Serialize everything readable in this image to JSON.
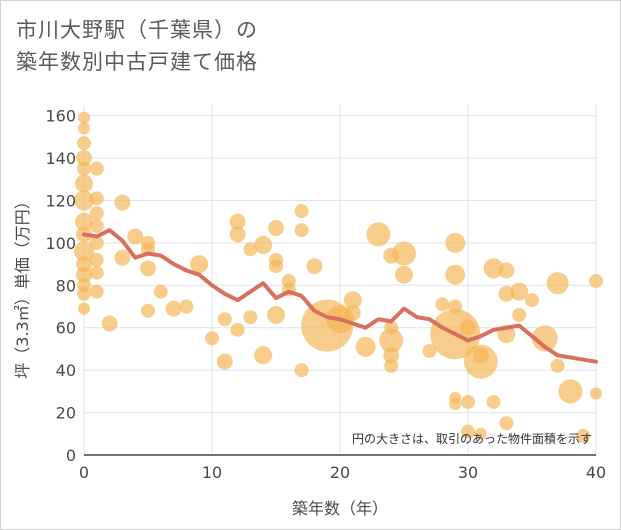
{
  "title_line1": "市川大野駅（千葉県）の",
  "title_line2": "築年数別中古戸建て価格",
  "chart_data": {
    "type": "scatter",
    "title": "市川大野駅（千葉県）の築年数別中古戸建て価格",
    "xlabel": "築年数（年）",
    "ylabel": "坪（3.3㎡）単価（万円）",
    "xlim": [
      0,
      40
    ],
    "ylim": [
      0,
      165
    ],
    "x_ticks": [
      0,
      10,
      20,
      30,
      40
    ],
    "y_ticks": [
      0,
      20,
      40,
      60,
      80,
      100,
      120,
      140,
      160
    ],
    "note": "円の大きさは、取引のあった物件面積を示す",
    "colors": {
      "bubble": "#f5b554",
      "line": "#d9705c",
      "grid": "#dde3ec"
    },
    "points": [
      {
        "x": 0,
        "y": 159,
        "s": 6
      },
      {
        "x": 0,
        "y": 154,
        "s": 6
      },
      {
        "x": 0,
        "y": 147,
        "s": 7
      },
      {
        "x": 0,
        "y": 140,
        "s": 8
      },
      {
        "x": 0,
        "y": 135,
        "s": 7
      },
      {
        "x": 0,
        "y": 128,
        "s": 9
      },
      {
        "x": 0,
        "y": 120,
        "s": 10
      },
      {
        "x": 0,
        "y": 110,
        "s": 9
      },
      {
        "x": 0,
        "y": 104,
        "s": 8
      },
      {
        "x": 0,
        "y": 96,
        "s": 10
      },
      {
        "x": 0,
        "y": 90,
        "s": 8
      },
      {
        "x": 0,
        "y": 85,
        "s": 8
      },
      {
        "x": 0,
        "y": 80,
        "s": 7
      },
      {
        "x": 0,
        "y": 76,
        "s": 7
      },
      {
        "x": 0,
        "y": 69,
        "s": 6
      },
      {
        "x": 1,
        "y": 135,
        "s": 7
      },
      {
        "x": 1,
        "y": 121,
        "s": 7
      },
      {
        "x": 1,
        "y": 114,
        "s": 7
      },
      {
        "x": 1,
        "y": 108,
        "s": 7
      },
      {
        "x": 1,
        "y": 100,
        "s": 7
      },
      {
        "x": 1,
        "y": 92,
        "s": 7
      },
      {
        "x": 1,
        "y": 86,
        "s": 7
      },
      {
        "x": 1,
        "y": 77,
        "s": 7
      },
      {
        "x": 2,
        "y": 62,
        "s": 8
      },
      {
        "x": 3,
        "y": 119,
        "s": 8
      },
      {
        "x": 3,
        "y": 93,
        "s": 8
      },
      {
        "x": 4,
        "y": 103,
        "s": 8
      },
      {
        "x": 5,
        "y": 100,
        "s": 7
      },
      {
        "x": 5,
        "y": 97,
        "s": 7
      },
      {
        "x": 5,
        "y": 88,
        "s": 8
      },
      {
        "x": 5,
        "y": 68,
        "s": 7
      },
      {
        "x": 6,
        "y": 77,
        "s": 7
      },
      {
        "x": 7,
        "y": 69,
        "s": 8
      },
      {
        "x": 8,
        "y": 70,
        "s": 7
      },
      {
        "x": 9,
        "y": 90,
        "s": 9
      },
      {
        "x": 10,
        "y": 55,
        "s": 7
      },
      {
        "x": 11,
        "y": 64,
        "s": 7
      },
      {
        "x": 11,
        "y": 44,
        "s": 8
      },
      {
        "x": 12,
        "y": 110,
        "s": 8
      },
      {
        "x": 12,
        "y": 104,
        "s": 8
      },
      {
        "x": 12,
        "y": 59,
        "s": 7
      },
      {
        "x": 13,
        "y": 97,
        "s": 7
      },
      {
        "x": 13,
        "y": 65,
        "s": 7
      },
      {
        "x": 14,
        "y": 99,
        "s": 9
      },
      {
        "x": 14,
        "y": 47,
        "s": 9
      },
      {
        "x": 15,
        "y": 107,
        "s": 8
      },
      {
        "x": 15,
        "y": 92,
        "s": 7
      },
      {
        "x": 15,
        "y": 89,
        "s": 7
      },
      {
        "x": 15,
        "y": 66,
        "s": 9
      },
      {
        "x": 16,
        "y": 82,
        "s": 7
      },
      {
        "x": 16,
        "y": 78,
        "s": 7
      },
      {
        "x": 17,
        "y": 115,
        "s": 7
      },
      {
        "x": 17,
        "y": 106,
        "s": 7
      },
      {
        "x": 17,
        "y": 40,
        "s": 7
      },
      {
        "x": 18,
        "y": 89,
        "s": 8
      },
      {
        "x": 19,
        "y": 61,
        "s": 26
      },
      {
        "x": 20,
        "y": 64,
        "s": 14
      },
      {
        "x": 21,
        "y": 73,
        "s": 9
      },
      {
        "x": 21,
        "y": 67,
        "s": 8
      },
      {
        "x": 22,
        "y": 51,
        "s": 10
      },
      {
        "x": 23,
        "y": 104,
        "s": 12
      },
      {
        "x": 24,
        "y": 94,
        "s": 8
      },
      {
        "x": 24,
        "y": 60,
        "s": 7
      },
      {
        "x": 24,
        "y": 54,
        "s": 12
      },
      {
        "x": 24,
        "y": 47,
        "s": 8
      },
      {
        "x": 24,
        "y": 42,
        "s": 7
      },
      {
        "x": 25,
        "y": 95,
        "s": 12
      },
      {
        "x": 25,
        "y": 85,
        "s": 9
      },
      {
        "x": 27,
        "y": 49,
        "s": 7
      },
      {
        "x": 28,
        "y": 71,
        "s": 7
      },
      {
        "x": 29,
        "y": 100,
        "s": 10
      },
      {
        "x": 29,
        "y": 85,
        "s": 10
      },
      {
        "x": 29,
        "y": 70,
        "s": 7
      },
      {
        "x": 29,
        "y": 57,
        "s": 25
      },
      {
        "x": 29,
        "y": 27,
        "s": 6
      },
      {
        "x": 29,
        "y": 24,
        "s": 6
      },
      {
        "x": 30,
        "y": 60,
        "s": 8
      },
      {
        "x": 30,
        "y": 25,
        "s": 7
      },
      {
        "x": 30,
        "y": 11,
        "s": 7
      },
      {
        "x": 31,
        "y": 44,
        "s": 17
      },
      {
        "x": 31,
        "y": 47,
        "s": 8
      },
      {
        "x": 31,
        "y": 10,
        "s": 6
      },
      {
        "x": 32,
        "y": 88,
        "s": 10
      },
      {
        "x": 32,
        "y": 25,
        "s": 7
      },
      {
        "x": 33,
        "y": 87,
        "s": 8
      },
      {
        "x": 33,
        "y": 76,
        "s": 8
      },
      {
        "x": 33,
        "y": 57,
        "s": 9
      },
      {
        "x": 33,
        "y": 15,
        "s": 7
      },
      {
        "x": 34,
        "y": 77,
        "s": 9
      },
      {
        "x": 34,
        "y": 66,
        "s": 7
      },
      {
        "x": 35,
        "y": 73,
        "s": 7
      },
      {
        "x": 36,
        "y": 55,
        "s": 13
      },
      {
        "x": 37,
        "y": 81,
        "s": 11
      },
      {
        "x": 37,
        "y": 42,
        "s": 7
      },
      {
        "x": 38,
        "y": 30,
        "s": 12
      },
      {
        "x": 39,
        "y": 9,
        "s": 7
      },
      {
        "x": 40,
        "y": 82,
        "s": 7
      },
      {
        "x": 40,
        "y": 29,
        "s": 6
      }
    ],
    "trend": {
      "x": [
        0,
        1,
        2,
        3,
        4,
        5,
        6,
        7,
        8,
        9,
        10,
        11,
        12,
        13,
        14,
        15,
        16,
        17,
        18,
        19,
        20,
        21,
        22,
        23,
        24,
        25,
        26,
        27,
        28,
        29,
        30,
        31,
        32,
        33,
        34,
        35,
        36,
        37,
        38,
        39,
        40
      ],
      "y": [
        104,
        103,
        106,
        101,
        93,
        95,
        94,
        90,
        87,
        85,
        80,
        76,
        73,
        77,
        81,
        74,
        77,
        75,
        68,
        65,
        64,
        62,
        60,
        64,
        63,
        69,
        65,
        64,
        60,
        57,
        54,
        56,
        59,
        60,
        61,
        56,
        51,
        47,
        46,
        45,
        44
      ]
    }
  }
}
